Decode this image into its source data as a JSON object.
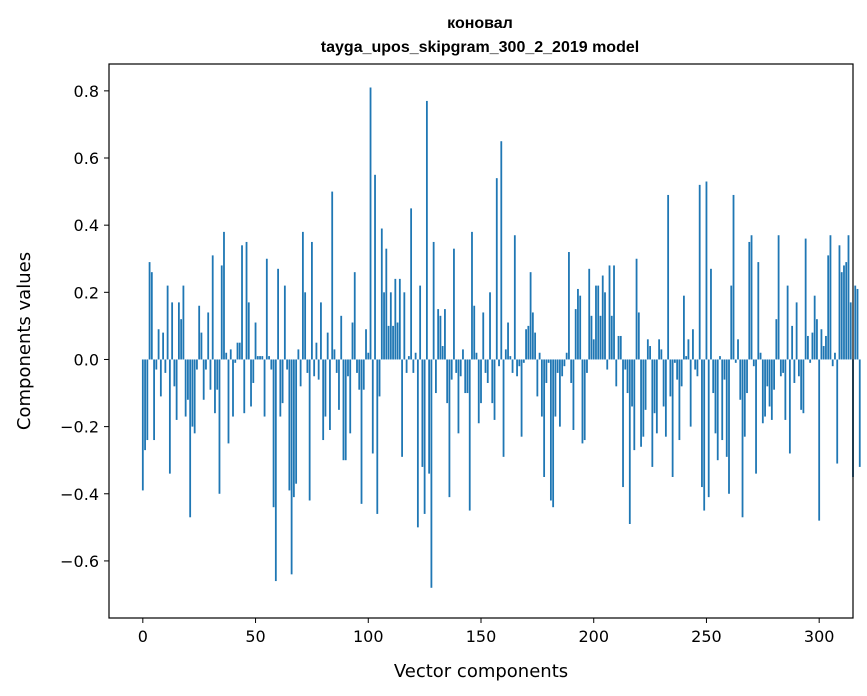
{
  "chart_data": {
    "type": "bar",
    "title": "коновал",
    "subtitle": "tayga_upos_skipgram_300_2_2019 model",
    "xlabel": "Vector components",
    "ylabel": "Components values",
    "xlim": [
      -15,
      315
    ],
    "ylim": [
      -0.77,
      0.88
    ],
    "xticks": [
      0,
      50,
      100,
      150,
      200,
      250,
      300
    ],
    "xtick_labels": [
      "0",
      "50",
      "100",
      "150",
      "200",
      "250",
      "300"
    ],
    "yticks": [
      -0.6,
      -0.4,
      -0.2,
      0.0,
      0.2,
      0.4,
      0.6,
      0.8
    ],
    "ytick_labels": [
      "−0.6",
      "−0.4",
      "−0.2",
      "0.0",
      "0.2",
      "0.4",
      "0.6",
      "0.8"
    ],
    "grid": false,
    "color": "#1f77b4",
    "values": [
      -0.39,
      -0.27,
      -0.24,
      0.29,
      0.26,
      -0.24,
      -0.03,
      0.09,
      -0.11,
      0.08,
      -0.04,
      0.22,
      -0.34,
      0.17,
      -0.08,
      -0.18,
      0.17,
      0.12,
      0.22,
      -0.17,
      -0.12,
      -0.47,
      -0.2,
      -0.22,
      -0.03,
      0.16,
      0.08,
      -0.12,
      -0.03,
      0.14,
      -0.09,
      0.31,
      -0.16,
      -0.09,
      -0.4,
      0.28,
      0.38,
      0.02,
      -0.25,
      0.03,
      -0.17,
      -0.01,
      0.05,
      0.05,
      0.34,
      -0.16,
      0.35,
      0.17,
      -0.14,
      -0.07,
      0.11,
      0.01,
      0.01,
      0.01,
      -0.17,
      0.3,
      0.01,
      -0.03,
      -0.44,
      -0.66,
      0.27,
      -0.17,
      -0.13,
      0.22,
      -0.03,
      -0.39,
      -0.64,
      -0.41,
      -0.37,
      0.03,
      -0.08,
      0.38,
      0.2,
      -0.04,
      -0.42,
      0.35,
      -0.05,
      0.05,
      -0.06,
      0.17,
      -0.24,
      -0.17,
      0.08,
      -0.21,
      0.5,
      0.03,
      -0.04,
      -0.15,
      0.13,
      -0.3,
      -0.3,
      -0.05,
      -0.22,
      0.11,
      0.26,
      -0.04,
      -0.09,
      -0.43,
      -0.09,
      0.09,
      0.02,
      0.81,
      -0.28,
      0.55,
      -0.46,
      -0.11,
      0.39,
      0.2,
      0.33,
      0.1,
      0.2,
      0.1,
      0.24,
      0.11,
      0.24,
      -0.29,
      0.2,
      -0.04,
      0.01,
      0.45,
      -0.04,
      0.02,
      -0.5,
      0.22,
      -0.32,
      -0.46,
      0.77,
      -0.34,
      -0.68,
      0.35,
      -0.1,
      0.15,
      0.13,
      0.04,
      0.15,
      -0.13,
      -0.41,
      -0.06,
      0.33,
      -0.04,
      -0.22,
      -0.05,
      0.03,
      -0.1,
      -0.1,
      -0.45,
      0.38,
      0.16,
      0.02,
      -0.19,
      -0.13,
      0.14,
      -0.04,
      -0.07,
      0.2,
      -0.13,
      -0.18,
      0.54,
      -0.02,
      0.65,
      -0.29,
      0.03,
      0.11,
      0.01,
      -0.04,
      0.37,
      -0.05,
      -0.02,
      -0.23,
      -0.01,
      0.09,
      0.1,
      0.26,
      0.14,
      0.08,
      -0.11,
      0.02,
      -0.17,
      -0.35,
      -0.07,
      -0.01,
      -0.42,
      -0.44,
      -0.17,
      -0.04,
      -0.2,
      -0.05,
      -0.02,
      0.02,
      0.32,
      -0.07,
      -0.21,
      0.15,
      0.21,
      0.19,
      -0.25,
      -0.24,
      -0.04,
      0.27,
      0.13,
      0.06,
      0.22,
      0.22,
      0.13,
      0.25,
      0.2,
      -0.03,
      0.28,
      0.13,
      0.28,
      -0.08,
      0.07,
      0.07,
      -0.38,
      -0.03,
      -0.1,
      -0.49,
      -0.14,
      -0.27,
      0.3,
      0.14,
      -0.26,
      -0.23,
      -0.15,
      0.06,
      0.04,
      -0.32,
      -0.16,
      -0.22,
      0.06,
      0.03,
      -0.14,
      -0.23,
      0.49,
      -0.11,
      -0.35,
      -0.01,
      -0.06,
      -0.24,
      -0.08,
      0.19,
      0.01,
      0.06,
      -0.2,
      0.09,
      -0.03,
      -0.05,
      0.52,
      -0.38,
      -0.45,
      0.53,
      -0.41,
      0.27,
      -0.1,
      -0.22,
      -0.3,
      0.01,
      -0.24,
      -0.06,
      -0.29,
      -0.4,
      0.22,
      0.49,
      -0.01,
      0.06,
      -0.12,
      -0.47,
      -0.23,
      -0.1,
      0.35,
      0.37,
      -0.02,
      -0.34,
      0.29,
      0.02,
      -0.19,
      -0.17,
      -0.08,
      -0.14,
      -0.18,
      -0.09,
      0.12,
      0.37,
      -0.05,
      -0.04,
      -0.18,
      0.22,
      -0.28,
      0.1,
      -0.07,
      0.17,
      -0.05,
      -0.15,
      -0.16,
      0.36,
      0.07,
      -0.01,
      0.08,
      0.19,
      0.12,
      -0.48,
      0.09,
      0.04,
      0.07,
      0.31,
      0.37,
      -0.02,
      0.02,
      -0.31,
      0.34,
      0.26,
      0.28,
      0.29,
      0.37,
      0.17,
      -0.35,
      0.22,
      0.21,
      -0.32
    ]
  }
}
